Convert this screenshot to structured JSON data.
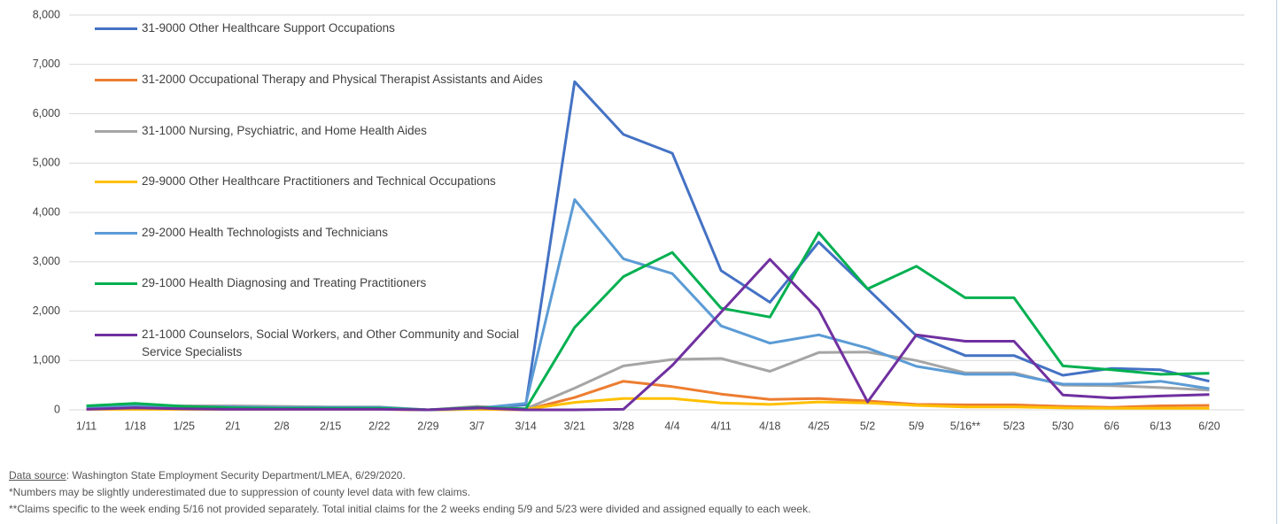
{
  "chart_data": {
    "type": "line",
    "categories": [
      "1/11",
      "1/18",
      "1/25",
      "2/1",
      "2/8",
      "2/15",
      "2/22",
      "2/29",
      "3/7",
      "3/14",
      "3/21",
      "3/28",
      "4/4",
      "4/11",
      "4/18",
      "4/25",
      "5/2",
      "5/9",
      "5/16**",
      "5/23",
      "5/30",
      "6/6",
      "6/13",
      "6/20"
    ],
    "series": [
      {
        "name": "31-9000 Other Healthcare Support Occupations",
        "color": "#4472c4",
        "values": [
          20,
          50,
          30,
          20,
          20,
          20,
          20,
          0,
          20,
          100,
          6650,
          5580,
          5200,
          2820,
          2180,
          3400,
          2450,
          1500,
          1100,
          1100,
          700,
          840,
          810,
          580
        ]
      },
      {
        "name": "31-2000 Occupational Therapy and Physical Therapist Assistants and Aides",
        "color": "#ed7d31",
        "values": [
          10,
          10,
          10,
          10,
          10,
          10,
          10,
          0,
          10,
          0,
          250,
          580,
          470,
          320,
          210,
          230,
          180,
          110,
          100,
          100,
          70,
          50,
          80,
          90
        ]
      },
      {
        "name": "31-1000 Nursing, Psychiatric, and Home Health Aides",
        "color": "#a5a5a5",
        "values": [
          80,
          90,
          80,
          80,
          70,
          60,
          60,
          0,
          70,
          20,
          440,
          890,
          1020,
          1040,
          780,
          1160,
          1170,
          1000,
          750,
          750,
          500,
          490,
          450,
          400
        ]
      },
      {
        "name": "29-9000 Other Healthcare Practitioners and Technical Occupations",
        "color": "#ffc000",
        "values": [
          10,
          10,
          10,
          10,
          10,
          10,
          10,
          0,
          10,
          10,
          150,
          230,
          230,
          140,
          110,
          160,
          140,
          90,
          60,
          60,
          40,
          30,
          30,
          30
        ]
      },
      {
        "name": "29-2000 Health Technologists and Technicians",
        "color": "#5b9bd5",
        "values": [
          60,
          80,
          60,
          60,
          50,
          50,
          50,
          0,
          30,
          130,
          4260,
          3060,
          2760,
          1700,
          1350,
          1520,
          1250,
          880,
          720,
          720,
          520,
          520,
          580,
          430
        ]
      },
      {
        "name": "29-1000 Health Diagnosing and Treating Practitioners",
        "color": "#00b050",
        "values": [
          80,
          130,
          70,
          40,
          30,
          30,
          30,
          0,
          50,
          20,
          1670,
          2700,
          3190,
          2060,
          1880,
          3590,
          2450,
          2910,
          2270,
          2270,
          890,
          810,
          720,
          740
        ]
      },
      {
        "name": "21-1000 Counselors, Social Workers, and Other Community and Social Service Specialists",
        "color": "#7030a0",
        "values": [
          10,
          40,
          20,
          10,
          10,
          10,
          10,
          0,
          40,
          0,
          0,
          10,
          900,
          1980,
          3050,
          2030,
          160,
          1520,
          1390,
          1390,
          300,
          240,
          280,
          310
        ]
      }
    ],
    "ylim": [
      0,
      8000
    ],
    "yticks": [
      0,
      {
        "value": 1000,
        "label": "1,000"
      },
      {
        "value": 2000,
        "label": "2,000"
      },
      {
        "value": 3000,
        "label": "3,000"
      },
      {
        "value": 4000,
        "label": "4,000"
      },
      {
        "value": 5000,
        "label": "5,000"
      },
      {
        "value": 6000,
        "label": "6,000"
      },
      {
        "value": 7000,
        "label": "7,000"
      },
      {
        "value": 8000,
        "label": "8,000"
      }
    ],
    "grid": true
  },
  "notes": {
    "source_label": "Data source",
    "source_text": ":  Washington State Employment Security Department/LMEA, 6/29/2020.",
    "note1": "*Numbers may be slightly underestimated due to suppression of county level data with few claims.",
    "note2": "**Claims specific to the week ending 5/16 not provided separately. Total initial claims for the 2 weeks ending 5/9 and 5/23 were divided and assigned equally to each week."
  }
}
